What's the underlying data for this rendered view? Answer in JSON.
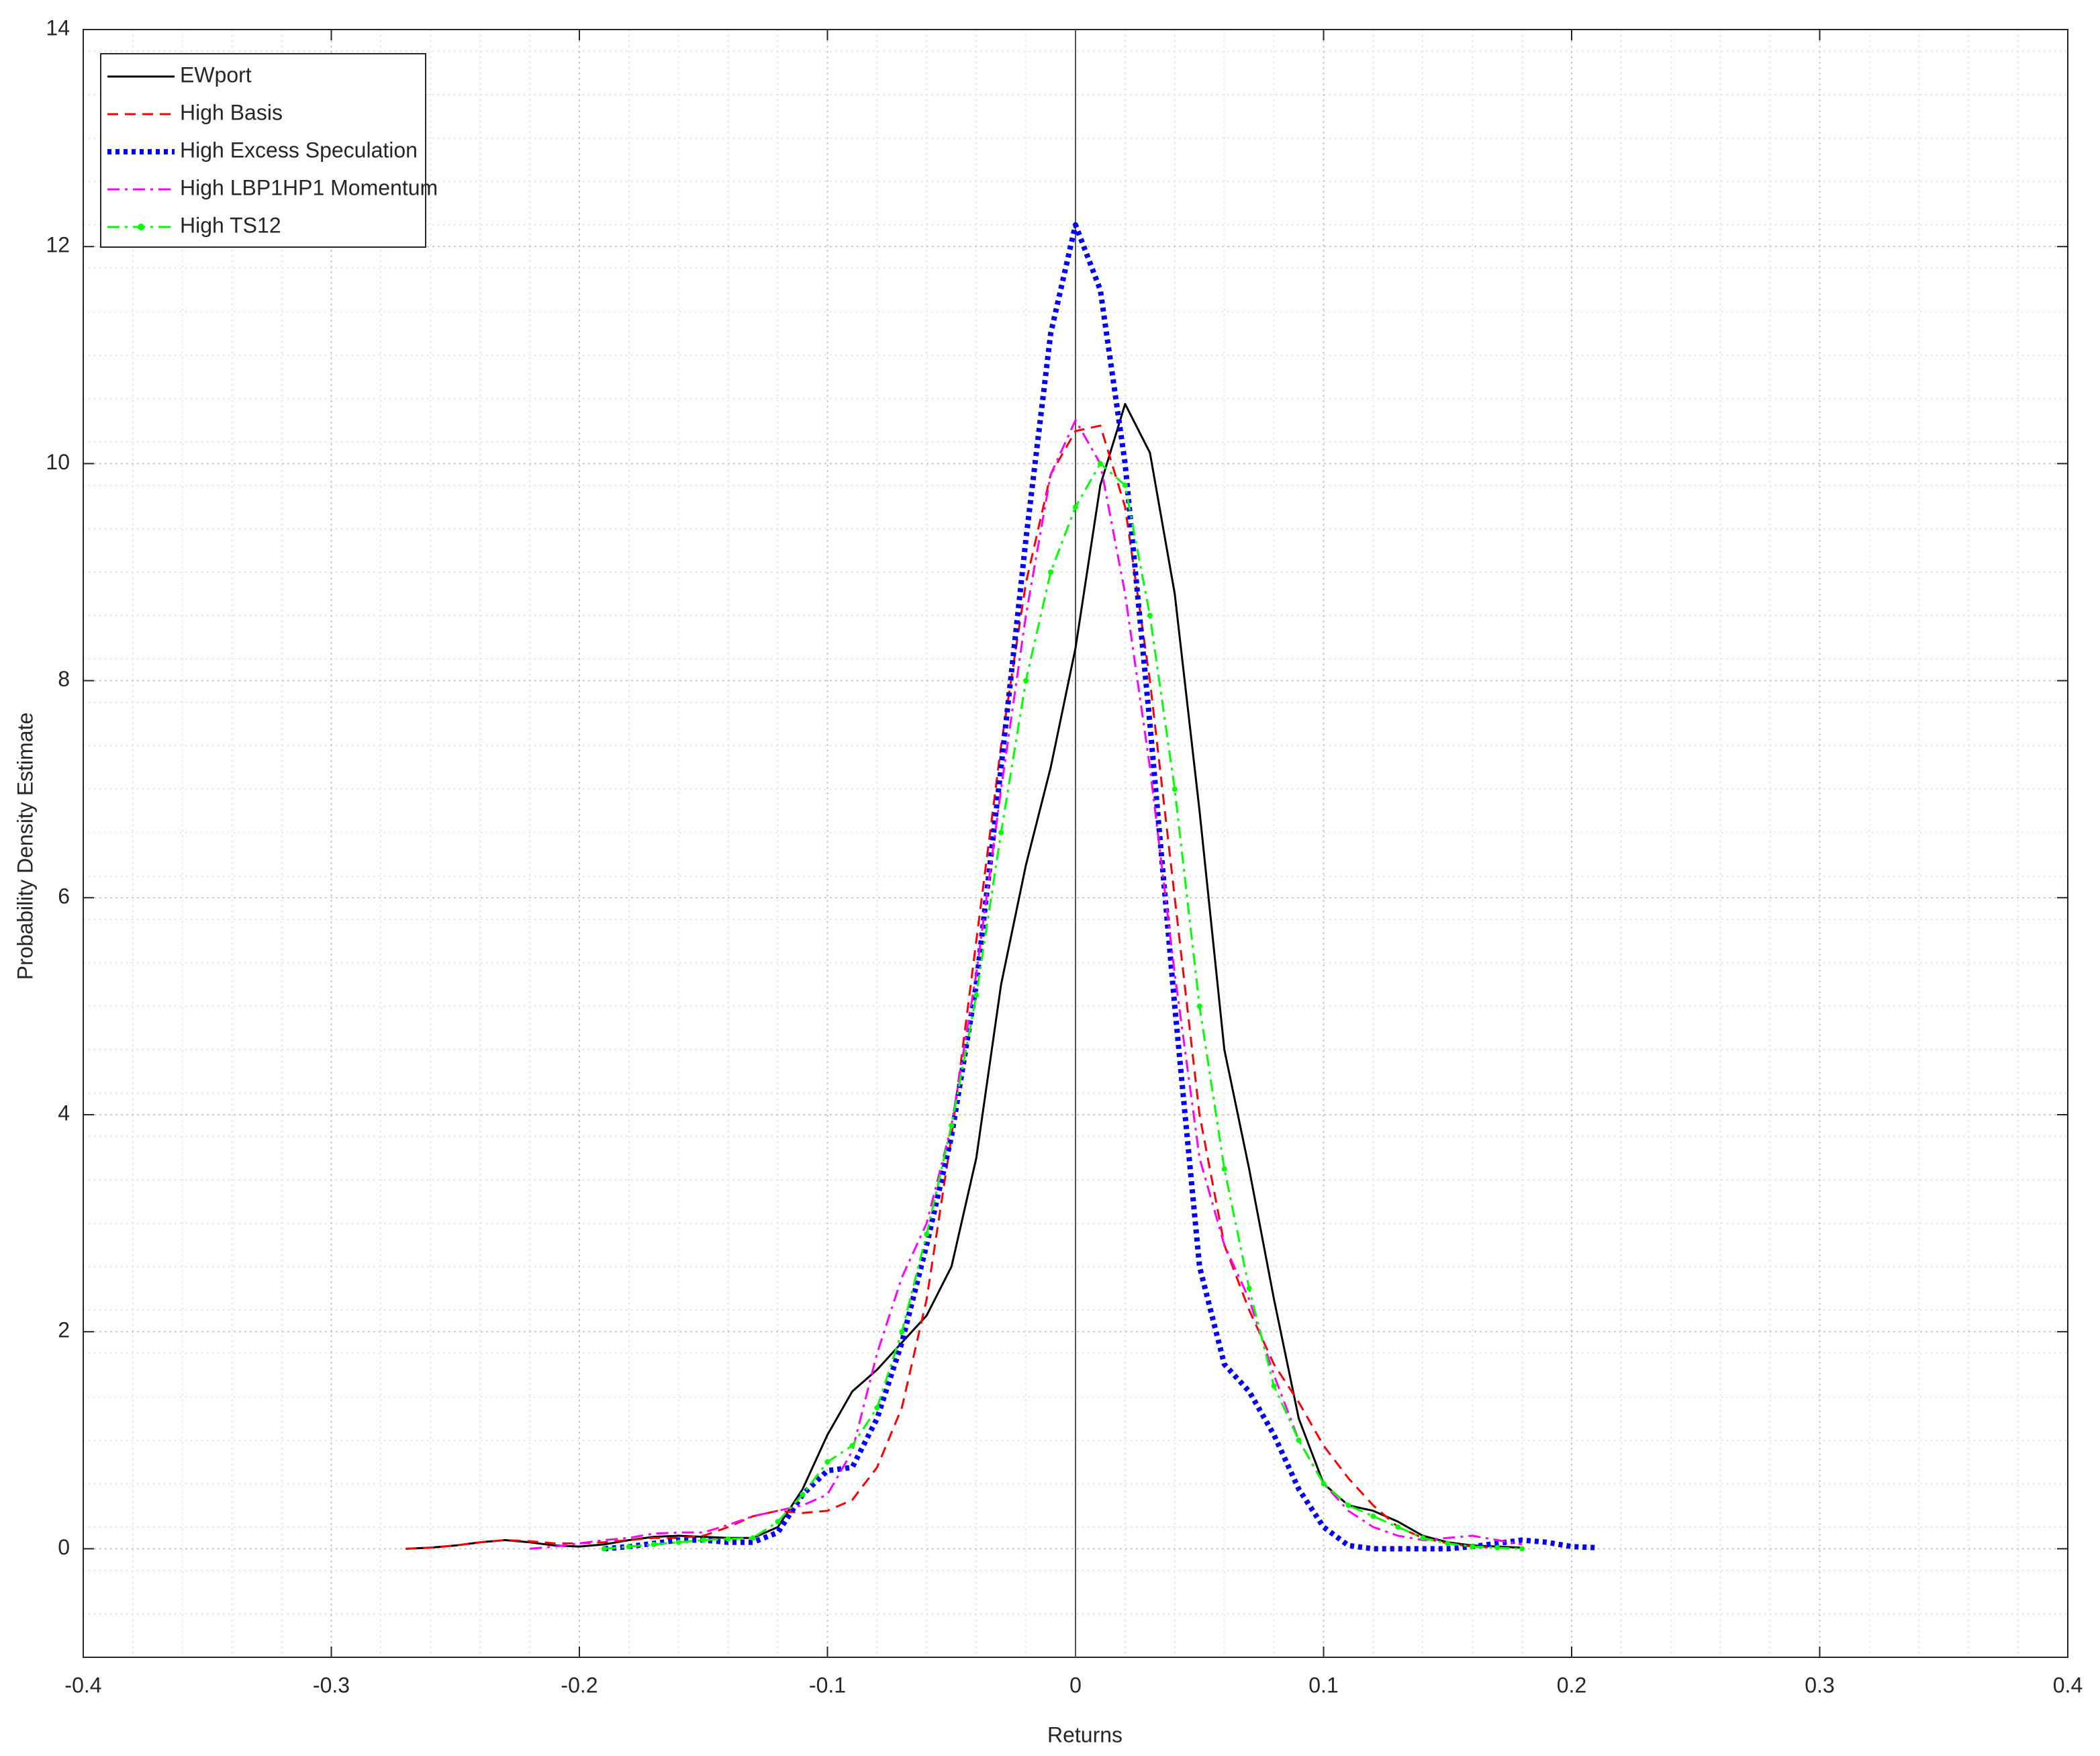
{
  "chart_data": {
    "type": "line",
    "x_label": "Returns",
    "y_label": "Probability Density Estimate",
    "x": [
      -0.27,
      -0.26,
      -0.25,
      -0.24,
      -0.23,
      -0.22,
      -0.21,
      -0.2,
      -0.19,
      -0.18,
      -0.17,
      -0.16,
      -0.15,
      -0.14,
      -0.13,
      -0.12,
      -0.11,
      -0.1,
      -0.09,
      -0.08,
      -0.07,
      -0.06,
      -0.05,
      -0.04,
      -0.03,
      -0.02,
      -0.01,
      0,
      0.01,
      0.02,
      0.03,
      0.04,
      0.05,
      0.06,
      0.07,
      0.08,
      0.09,
      0.1,
      0.11,
      0.12,
      0.13,
      0.14,
      0.15,
      0.16,
      0.17,
      0.18,
      0.19,
      0.2,
      0.21
    ],
    "series": [
      {
        "name": "EWport",
        "color": "#000000",
        "style": "solid",
        "values": [
          0,
          0.01,
          0.03,
          0.06,
          0.08,
          0.06,
          0.03,
          0.02,
          0.04,
          0.08,
          0.11,
          0.12,
          0.11,
          0.1,
          0.1,
          0.2,
          0.55,
          1.05,
          1.45,
          1.65,
          1.9,
          2.15,
          2.6,
          3.6,
          5.2,
          6.3,
          7.2,
          8.3,
          9.8,
          10.55,
          10.1,
          8.8,
          6.8,
          4.6,
          3.5,
          2.3,
          1.2,
          0.6,
          0.4,
          0.35,
          0.25,
          0.12,
          0.06,
          0.03,
          0.02,
          0.01,
          null,
          null,
          null
        ]
      },
      {
        "name": "High Basis",
        "color": "#ff0000",
        "style": "dashed",
        "values": [
          0,
          0.01,
          0.03,
          0.06,
          0.08,
          0.07,
          0.05,
          0.05,
          0.06,
          0.08,
          0.1,
          0.1,
          0.12,
          0.2,
          0.3,
          0.35,
          0.33,
          0.35,
          0.45,
          0.75,
          1.3,
          2.3,
          3.8,
          5.6,
          7.4,
          8.9,
          9.9,
          10.3,
          10.35,
          9.6,
          8.0,
          6.0,
          4.0,
          2.8,
          2.2,
          1.7,
          1.35,
          0.95,
          0.65,
          0.4,
          0.2,
          0.1,
          0.05,
          0.02,
          0.01,
          null,
          null,
          null,
          null
        ]
      },
      {
        "name": "High Excess Speculation",
        "color": "#0000ff",
        "style": "dotted",
        "values": [
          null,
          null,
          null,
          null,
          null,
          null,
          null,
          null,
          0,
          0.02,
          0.05,
          0.08,
          0.08,
          0.06,
          0.06,
          0.15,
          0.5,
          0.72,
          0.75,
          1.2,
          1.9,
          2.8,
          3.8,
          5.2,
          7.2,
          9.3,
          11.2,
          12.2,
          11.6,
          10.0,
          7.6,
          5.0,
          2.6,
          1.7,
          1.45,
          1.05,
          0.55,
          0.2,
          0.03,
          0,
          0,
          0,
          0,
          0.02,
          0.05,
          0.08,
          0.06,
          0.02,
          0.01
        ]
      },
      {
        "name": "High LBP1HP1 Momentum",
        "color": "#ff00ff",
        "style": "dashdot",
        "values": [
          null,
          null,
          null,
          null,
          null,
          0,
          0.02,
          0.05,
          0.08,
          0.1,
          0.14,
          0.15,
          0.15,
          0.22,
          0.3,
          0.35,
          0.4,
          0.5,
          0.9,
          1.8,
          2.5,
          3.0,
          3.9,
          5.3,
          7.0,
          8.6,
          9.9,
          10.4,
          10.0,
          8.8,
          7.2,
          5.3,
          3.6,
          2.8,
          2.3,
          1.6,
          1.0,
          0.6,
          0.35,
          0.2,
          0.12,
          0.08,
          0.1,
          0.12,
          0.08,
          0.04,
          null,
          null,
          null
        ]
      },
      {
        "name": "High TS12",
        "color": "#00ff00",
        "style": "dashdot",
        "marker": true,
        "values": [
          null,
          null,
          null,
          null,
          null,
          null,
          null,
          null,
          0,
          0.02,
          0.04,
          0.06,
          0.08,
          0.09,
          0.1,
          0.25,
          0.5,
          0.8,
          0.95,
          1.3,
          2.0,
          2.9,
          3.9,
          5.1,
          6.6,
          8.0,
          9.0,
          9.6,
          10.0,
          9.8,
          8.6,
          7.0,
          5.0,
          3.5,
          2.4,
          1.5,
          1.0,
          0.6,
          0.4,
          0.3,
          0.2,
          0.1,
          0.05,
          0.02,
          0.01,
          0,
          null,
          null,
          null
        ]
      }
    ],
    "xlim": [
      -0.4,
      0.4
    ],
    "xticks": [
      -0.4,
      -0.3,
      -0.2,
      -0.1,
      0,
      0.1,
      0.2,
      0.3,
      0.4
    ],
    "ylim": [
      -1,
      14
    ],
    "yticks": [
      0,
      2,
      4,
      6,
      8,
      10,
      12,
      14
    ],
    "xline": 0,
    "grid": true,
    "minor_grid": true,
    "legend": "upper-left"
  }
}
